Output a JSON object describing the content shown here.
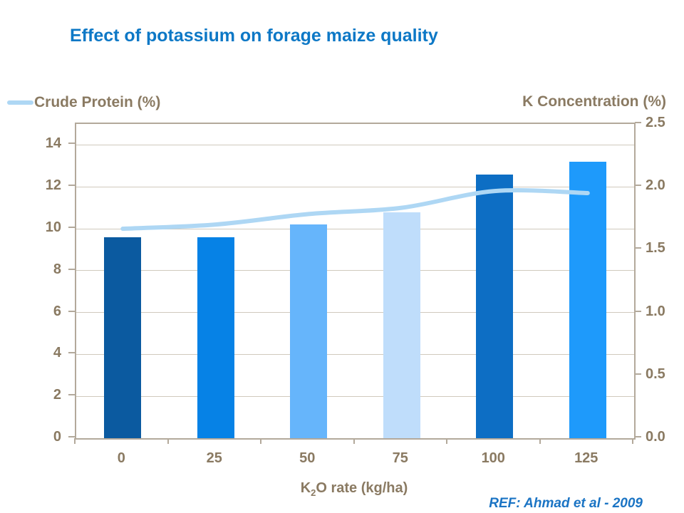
{
  "title": {
    "text": "Effect of potassium on forage maize quality",
    "color": "#0d78c6"
  },
  "legend": {
    "label": "Crude Protein (%)",
    "glyph_color": "#aed7f4"
  },
  "axes": {
    "right_title": "K Concentration (%)",
    "x_title_pre": "K",
    "x_title_sub": "2",
    "x_title_post": "O rate (kg/ha)"
  },
  "footnote": {
    "ref": "REF: Ahmad et al - 2009",
    "color": "#1b74c4"
  },
  "chart_data": {
    "type": "bar",
    "subtype": "dual-axis bar+line",
    "categories": [
      "0",
      "25",
      "50",
      "75",
      "100",
      "125"
    ],
    "series": [
      {
        "name": "K Concentration (%)",
        "type": "bar",
        "axis": "right",
        "values": [
          1.6,
          1.6,
          1.7,
          1.8,
          2.1,
          2.2
        ],
        "bar_colors": [
          "#0b5aa0",
          "#0682e6",
          "#66b5fb",
          "#bfddfb",
          "#0d6ec4",
          "#1e9afb"
        ]
      },
      {
        "name": "Crude Protein (%)",
        "type": "line",
        "axis": "left",
        "smooth": true,
        "values": [
          10.0,
          10.2,
          10.7,
          11.0,
          11.8,
          11.7
        ],
        "color": "#aed7f4",
        "stroke_width": 6
      }
    ],
    "left_axis": {
      "min": 0,
      "max": 15,
      "tick_labels": [
        "0",
        "2",
        "4",
        "6",
        "8",
        "10",
        "12",
        "14"
      ],
      "tick_values": [
        0,
        2,
        4,
        6,
        8,
        10,
        12,
        14
      ]
    },
    "right_axis": {
      "min": 0,
      "max": 2.5,
      "tick_labels": [
        "0.0",
        "0.5",
        "1.0",
        "1.5",
        "2.0",
        "2.5"
      ],
      "tick_values": [
        0,
        0.5,
        1.0,
        1.5,
        2.0,
        2.5
      ]
    },
    "xlabel": "K2O rate (kg/ha)",
    "grid": "horizontal-only",
    "legend_position": "top-left",
    "text_color": "#8a7a62",
    "grid_color": "#d0c9bd",
    "border_color": "#b3a99b",
    "background": "#ffffff"
  }
}
